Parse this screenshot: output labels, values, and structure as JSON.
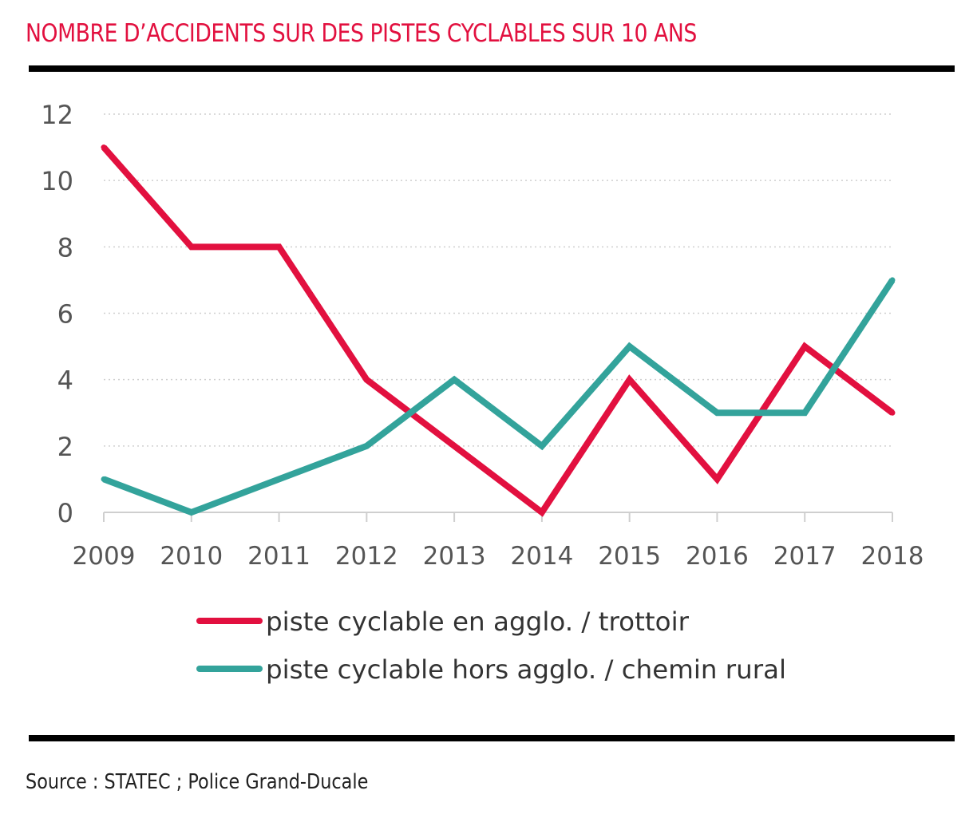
{
  "title": "NOMBRE D’ACCIDENTS SUR DES PISTES CYCLABLES SUR 10 ANS",
  "source": "Source : STATEC ; Police Grand-Ducale",
  "colors": {
    "title": "#e2103f",
    "series_1": "#e2103f",
    "series_2": "#33a39b",
    "axis_text": "#555555",
    "grid": "#cfcfcf"
  },
  "chart_data": {
    "type": "line",
    "title": "NOMBRE D’ACCIDENTS SUR DES PISTES CYCLABLES SUR 10 ANS",
    "xlabel": "",
    "ylabel": "",
    "x": [
      "2009",
      "2010",
      "2011",
      "2012",
      "2013",
      "2014",
      "2015",
      "2016",
      "2017",
      "2018"
    ],
    "yticks": [
      0,
      2,
      4,
      6,
      8,
      10,
      12
    ],
    "ylim": [
      0,
      12
    ],
    "grid": "horizontal dotted",
    "legend_position": "bottom",
    "series": [
      {
        "name": "piste cyclable en agglo. / trottoir",
        "color": "#e2103f",
        "values": [
          11,
          8,
          8,
          4,
          2,
          0,
          4,
          1,
          5,
          3
        ]
      },
      {
        "name": "piste cyclable hors agglo. / chemin rural",
        "color": "#33a39b",
        "values": [
          1,
          0,
          1,
          2,
          4,
          2,
          5,
          3,
          3,
          7
        ]
      }
    ]
  }
}
